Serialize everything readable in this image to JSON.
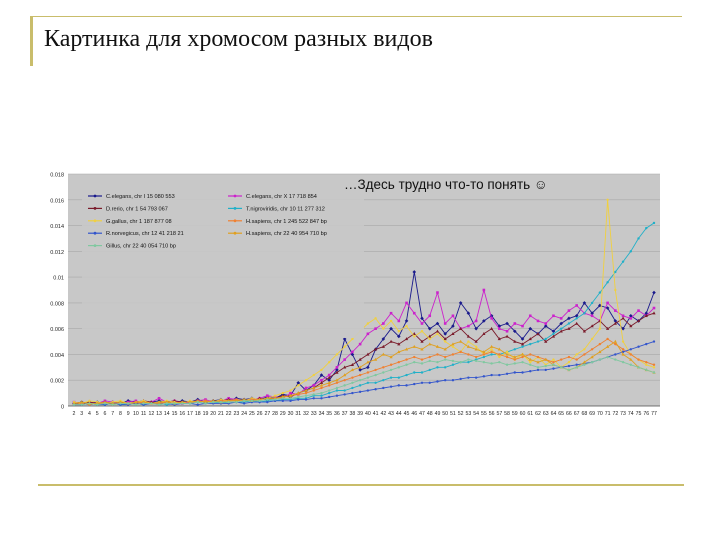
{
  "slide": {
    "title": "Картинка для хромосом разных видов",
    "annotation": "…Здесь трудно что-то понять ☺"
  },
  "colors": {
    "accent_rule": "#c9bd6b",
    "plot_bg": "#c8c8c8"
  },
  "chart_data": {
    "type": "line",
    "title": "",
    "xlabel": "",
    "ylabel": "",
    "ylim": [
      0,
      0.018
    ],
    "yticks": [
      "0.018",
      "0.016",
      "0.014",
      "0.012",
      "0.01",
      "0.008",
      "0.006",
      "0.004",
      "0.002",
      "0"
    ],
    "xticks": [
      "2",
      "3",
      "4",
      "5",
      "6",
      "7",
      "8",
      "9",
      "10",
      "11",
      "12",
      "13",
      "14",
      "15",
      "16",
      "17",
      "18",
      "19",
      "20",
      "21",
      "22",
      "23",
      "24",
      "25",
      "26",
      "27",
      "28",
      "29",
      "30",
      "31",
      "32",
      "33",
      "34",
      "35",
      "36",
      "37",
      "38",
      "39",
      "40",
      "41",
      "42",
      "43",
      "44",
      "45",
      "46",
      "47",
      "48",
      "49",
      "50",
      "51",
      "52",
      "53",
      "54",
      "55",
      "56",
      "57",
      "58",
      "59",
      "60",
      "61",
      "62",
      "63",
      "64",
      "65",
      "66",
      "67",
      "68",
      "69",
      "70",
      "71",
      "72",
      "73",
      "74",
      "75",
      "76",
      "77"
    ],
    "grid": true,
    "legend": "top-left",
    "series": [
      {
        "name": "C.elegans, chr I 15 080 553",
        "color": "#1a1a8c",
        "values": [
          0.0002,
          0.0003,
          0.0002,
          0.0003,
          0.0002,
          0.0003,
          0.0002,
          0.0004,
          0.0003,
          0.0002,
          0.0003,
          0.0004,
          0.0003,
          0.0002,
          0.0004,
          0.0003,
          0.0005,
          0.0003,
          0.0004,
          0.0005,
          0.0004,
          0.0006,
          0.0005,
          0.0006,
          0.0005,
          0.0007,
          0.0006,
          0.0009,
          0.0008,
          0.0018,
          0.0012,
          0.0016,
          0.0024,
          0.002,
          0.0028,
          0.0052,
          0.004,
          0.0028,
          0.003,
          0.0044,
          0.0052,
          0.006,
          0.0054,
          0.0066,
          0.0104,
          0.0068,
          0.006,
          0.0064,
          0.0056,
          0.0062,
          0.008,
          0.0072,
          0.006,
          0.0066,
          0.007,
          0.0062,
          0.0064,
          0.0058,
          0.0052,
          0.006,
          0.0056,
          0.0062,
          0.0058,
          0.0064,
          0.0068,
          0.007,
          0.008,
          0.0072,
          0.0078,
          0.0076,
          0.0066,
          0.006,
          0.007,
          0.0066,
          0.0072,
          0.0088
        ]
      },
      {
        "name": "C.elegans, chr X 17 718 854",
        "color": "#cc22cc",
        "values": [
          0.0003,
          0.0002,
          0.0003,
          0.0002,
          0.0004,
          0.0003,
          0.0002,
          0.0003,
          0.0004,
          0.0002,
          0.0003,
          0.0006,
          0.0003,
          0.0004,
          0.0002,
          0.0003,
          0.0004,
          0.0005,
          0.0003,
          0.0004,
          0.0006,
          0.0005,
          0.0004,
          0.0005,
          0.0006,
          0.0008,
          0.0007,
          0.0006,
          0.001,
          0.0009,
          0.0014,
          0.0016,
          0.002,
          0.0024,
          0.003,
          0.0036,
          0.0042,
          0.0048,
          0.0056,
          0.006,
          0.0064,
          0.0072,
          0.0066,
          0.008,
          0.0072,
          0.0064,
          0.007,
          0.0088,
          0.0064,
          0.007,
          0.006,
          0.0062,
          0.0066,
          0.009,
          0.0068,
          0.006,
          0.0058,
          0.0064,
          0.0062,
          0.007,
          0.0066,
          0.0064,
          0.007,
          0.0068,
          0.0074,
          0.0078,
          0.0072,
          0.007,
          0.0066,
          0.008,
          0.0074,
          0.007,
          0.0068,
          0.0074,
          0.007,
          0.0076
        ]
      },
      {
        "name": "D.rerio, chr 1 54 793 067",
        "color": "#7a1a2a",
        "values": [
          0.0002,
          0.0002,
          0.0003,
          0.0002,
          0.0003,
          0.0002,
          0.0003,
          0.0002,
          0.0003,
          0.0004,
          0.0003,
          0.0002,
          0.0003,
          0.0004,
          0.0003,
          0.0003,
          0.0004,
          0.0003,
          0.0004,
          0.0004,
          0.0005,
          0.0004,
          0.0005,
          0.0004,
          0.0006,
          0.0005,
          0.0006,
          0.0008,
          0.0007,
          0.001,
          0.0012,
          0.0014,
          0.0018,
          0.0022,
          0.0026,
          0.003,
          0.0032,
          0.0036,
          0.004,
          0.0044,
          0.0046,
          0.005,
          0.0048,
          0.0052,
          0.0056,
          0.005,
          0.0054,
          0.0058,
          0.0052,
          0.0056,
          0.006,
          0.0054,
          0.005,
          0.0056,
          0.006,
          0.0052,
          0.0054,
          0.005,
          0.0048,
          0.0052,
          0.0056,
          0.005,
          0.0054,
          0.0058,
          0.006,
          0.0064,
          0.0058,
          0.0062,
          0.0066,
          0.006,
          0.0064,
          0.0068,
          0.0062,
          0.0066,
          0.007,
          0.0072
        ]
      },
      {
        "name": "T.nigroviridis, chr 10 11 277 312",
        "color": "#20b0c8",
        "values": [
          0.0001,
          0.0002,
          0.0001,
          0.0002,
          0.0001,
          0.0002,
          0.0001,
          0.0002,
          0.0002,
          0.0001,
          0.0002,
          0.0002,
          0.0001,
          0.0002,
          0.0002,
          0.0002,
          0.0003,
          0.0002,
          0.0003,
          0.0002,
          0.0003,
          0.0003,
          0.0003,
          0.0004,
          0.0003,
          0.0004,
          0.0004,
          0.0005,
          0.0005,
          0.0006,
          0.0006,
          0.0008,
          0.0008,
          0.001,
          0.0012,
          0.0012,
          0.0014,
          0.0016,
          0.0018,
          0.0018,
          0.002,
          0.0022,
          0.0022,
          0.0024,
          0.0026,
          0.0026,
          0.0028,
          0.003,
          0.003,
          0.0032,
          0.0034,
          0.0034,
          0.0036,
          0.0038,
          0.004,
          0.004,
          0.0042,
          0.0044,
          0.0046,
          0.0048,
          0.005,
          0.0052,
          0.0056,
          0.006,
          0.0064,
          0.0068,
          0.0072,
          0.008,
          0.0088,
          0.0096,
          0.0104,
          0.0112,
          0.012,
          0.013,
          0.0138,
          0.0142
        ]
      },
      {
        "name": "G.gallus, chr 1 187 877 08",
        "color": "#f0d040",
        "values": [
          0.0003,
          0.0002,
          0.0004,
          0.0003,
          0.0002,
          0.0003,
          0.0004,
          0.0002,
          0.0003,
          0.0004,
          0.0002,
          0.0003,
          0.0004,
          0.0003,
          0.0002,
          0.0004,
          0.0003,
          0.0004,
          0.0003,
          0.0005,
          0.0004,
          0.0005,
          0.0004,
          0.0006,
          0.0005,
          0.0006,
          0.0008,
          0.001,
          0.0012,
          0.0016,
          0.002,
          0.0024,
          0.0028,
          0.0034,
          0.004,
          0.0046,
          0.0052,
          0.0058,
          0.0064,
          0.0068,
          0.006,
          0.0066,
          0.0058,
          0.0062,
          0.0054,
          0.0058,
          0.0052,
          0.0056,
          0.005,
          0.0046,
          0.0042,
          0.005,
          0.0046,
          0.004,
          0.0044,
          0.0038,
          0.0042,
          0.0036,
          0.004,
          0.0034,
          0.0038,
          0.0032,
          0.0036,
          0.003,
          0.0034,
          0.004,
          0.0044,
          0.0052,
          0.006,
          0.016,
          0.009,
          0.005,
          0.004,
          0.0036,
          0.0032,
          0.003
        ]
      },
      {
        "name": "H.sapiens, chr 1 245 522 847 bp",
        "color": "#f08030",
        "values": [
          0.0001,
          0.0002,
          0.0001,
          0.0002,
          0.0002,
          0.0001,
          0.0002,
          0.0002,
          0.0002,
          0.0003,
          0.0002,
          0.0002,
          0.0003,
          0.0002,
          0.0003,
          0.0003,
          0.0003,
          0.0004,
          0.0003,
          0.0004,
          0.0004,
          0.0005,
          0.0004,
          0.0005,
          0.0005,
          0.0006,
          0.0006,
          0.0007,
          0.0008,
          0.0009,
          0.001,
          0.0012,
          0.0014,
          0.0016,
          0.0018,
          0.002,
          0.0022,
          0.0024,
          0.0026,
          0.0028,
          0.003,
          0.0032,
          0.0034,
          0.0036,
          0.0038,
          0.0036,
          0.0038,
          0.004,
          0.0038,
          0.004,
          0.0042,
          0.004,
          0.0038,
          0.004,
          0.0042,
          0.004,
          0.0038,
          0.0036,
          0.0038,
          0.004,
          0.0038,
          0.0036,
          0.0034,
          0.0036,
          0.0038,
          0.0036,
          0.004,
          0.0044,
          0.0048,
          0.0052,
          0.0048,
          0.0044,
          0.004,
          0.0036,
          0.0034,
          0.0032
        ]
      },
      {
        "name": "R.norvegicus, chr 12 41 218 21",
        "color": "#3355cc",
        "values": [
          0.0001,
          0.0001,
          0.0002,
          0.0001,
          0.0001,
          0.0002,
          0.0001,
          0.0001,
          0.0002,
          0.0001,
          0.0002,
          0.0001,
          0.0002,
          0.0001,
          0.0002,
          0.0002,
          0.0001,
          0.0002,
          0.0002,
          0.0002,
          0.0002,
          0.0003,
          0.0002,
          0.0003,
          0.0003,
          0.0003,
          0.0004,
          0.0004,
          0.0004,
          0.0005,
          0.0005,
          0.0006,
          0.0006,
          0.0007,
          0.0008,
          0.0009,
          0.001,
          0.0011,
          0.0012,
          0.0013,
          0.0014,
          0.0015,
          0.0016,
          0.0016,
          0.0017,
          0.0018,
          0.0018,
          0.0019,
          0.002,
          0.002,
          0.0021,
          0.0022,
          0.0022,
          0.0023,
          0.0024,
          0.0024,
          0.0025,
          0.0026,
          0.0026,
          0.0027,
          0.0028,
          0.0028,
          0.0029,
          0.003,
          0.0031,
          0.0032,
          0.0033,
          0.0034,
          0.0036,
          0.0038,
          0.004,
          0.0042,
          0.0044,
          0.0046,
          0.0048,
          0.005
        ]
      },
      {
        "name": "H.sapiens, chr 22 40 954 710 bp",
        "color": "#e0a020",
        "values": [
          0.0002,
          0.0003,
          0.0002,
          0.0002,
          0.0003,
          0.0002,
          0.0003,
          0.0002,
          0.0003,
          0.0003,
          0.0002,
          0.0003,
          0.0003,
          0.0002,
          0.0003,
          0.0003,
          0.0004,
          0.0003,
          0.0004,
          0.0003,
          0.0004,
          0.0004,
          0.0005,
          0.0004,
          0.0005,
          0.0006,
          0.0006,
          0.0007,
          0.0008,
          0.001,
          0.0012,
          0.0014,
          0.0016,
          0.0018,
          0.002,
          0.0024,
          0.0028,
          0.003,
          0.0034,
          0.0036,
          0.004,
          0.0038,
          0.0042,
          0.0044,
          0.0046,
          0.0044,
          0.0048,
          0.0046,
          0.0044,
          0.0048,
          0.005,
          0.0046,
          0.0044,
          0.0042,
          0.0046,
          0.0044,
          0.004,
          0.0038,
          0.004,
          0.0036,
          0.0034,
          0.0036,
          0.0032,
          0.003,
          0.0028,
          0.003,
          0.0034,
          0.0038,
          0.0042,
          0.0046,
          0.005,
          0.004,
          0.0036,
          0.003,
          0.0028,
          0.0026
        ]
      },
      {
        "name": "Gillus, chr 22 40 054 710 bp",
        "color": "#80c8a0",
        "values": [
          0.0001,
          0.0001,
          0.0002,
          0.0001,
          0.0002,
          0.0001,
          0.0002,
          0.0002,
          0.0001,
          0.0002,
          0.0002,
          0.0001,
          0.0002,
          0.0002,
          0.0002,
          0.0002,
          0.0003,
          0.0002,
          0.0003,
          0.0003,
          0.0003,
          0.0003,
          0.0004,
          0.0004,
          0.0004,
          0.0005,
          0.0005,
          0.0006,
          0.0006,
          0.0007,
          0.0008,
          0.0009,
          0.001,
          0.0012,
          0.0014,
          0.0016,
          0.0018,
          0.002,
          0.0022,
          0.0024,
          0.0026,
          0.0028,
          0.003,
          0.0032,
          0.0034,
          0.0033,
          0.0035,
          0.0034,
          0.0036,
          0.0035,
          0.0034,
          0.0036,
          0.0035,
          0.0034,
          0.0033,
          0.0034,
          0.0032,
          0.0033,
          0.0034,
          0.0032,
          0.003,
          0.0031,
          0.0032,
          0.003,
          0.0028,
          0.003,
          0.0032,
          0.0034,
          0.0036,
          0.0038,
          0.0036,
          0.0034,
          0.0032,
          0.003,
          0.0028,
          0.0026
        ]
      }
    ]
  }
}
